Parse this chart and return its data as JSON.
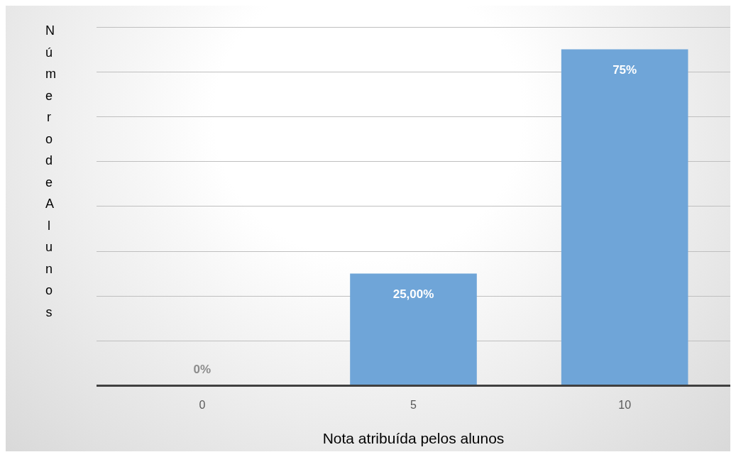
{
  "chart_data": {
    "type": "bar",
    "xlabel": "Nota atribuída pelos alunos",
    "ylabel": "Número de Alunos",
    "categories": [
      "0",
      "5",
      "10"
    ],
    "values": [
      0,
      25,
      75
    ],
    "value_labels": [
      "0%",
      "25,00%",
      "75%"
    ],
    "color": "#6fa5d8",
    "tick_labels": "x",
    "grid": "y",
    "legend": false
  }
}
